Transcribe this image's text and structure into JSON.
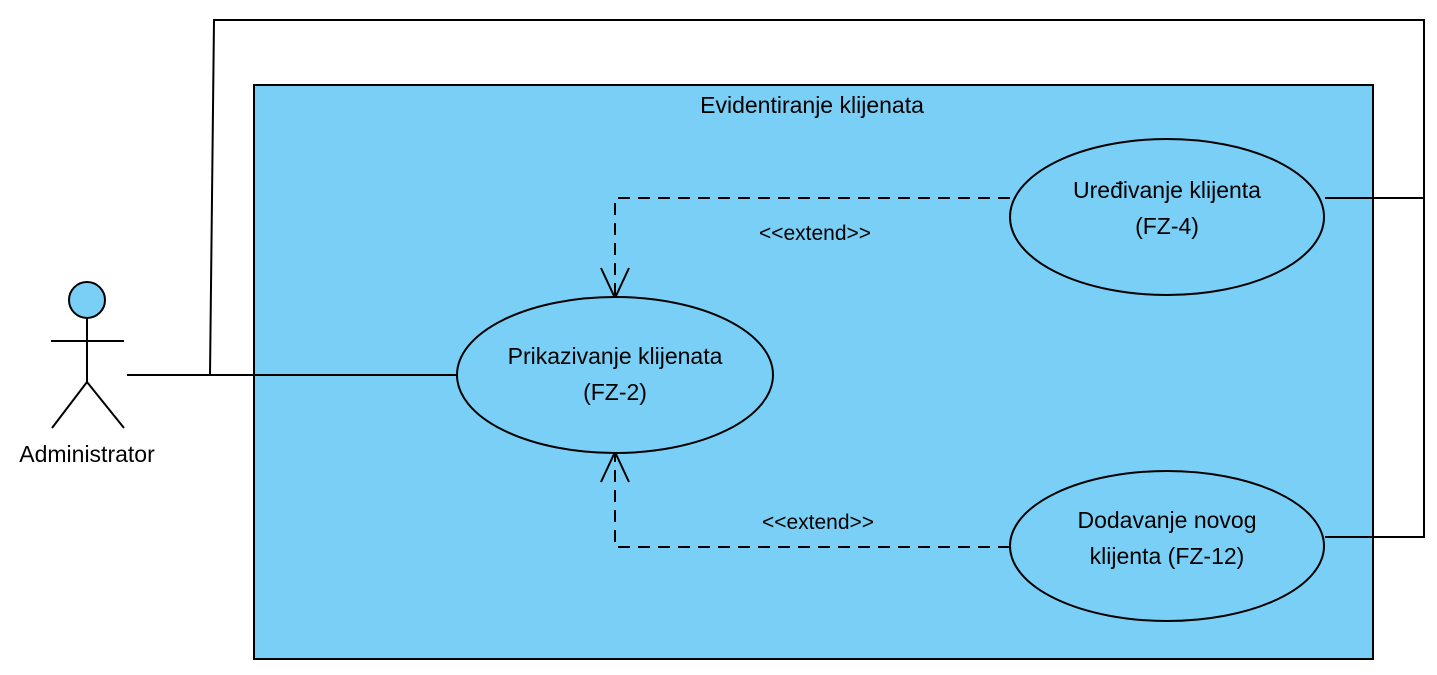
{
  "system": {
    "title": "Evidentiranje klijenata"
  },
  "actor": {
    "name": "Administrator"
  },
  "use_cases": {
    "prikaz": {
      "line1": "Prikazivanje klijenata",
      "line2": "(FZ-2)"
    },
    "uredjivanje": {
      "line1": "Uređivanje klijenta",
      "line2": "(FZ-4)"
    },
    "dodavanje": {
      "line1": "Dodavanje novog",
      "line2": "klijenta  (FZ-12)"
    }
  },
  "relations": {
    "extend_top": "<<extend>>",
    "extend_bottom": "<<extend>>"
  },
  "colors": {
    "boundary_fill": "#79CFF5",
    "usecase_fill": "#79CFF5",
    "actor_head_fill": "#79CFF5",
    "stroke": "#000000"
  }
}
